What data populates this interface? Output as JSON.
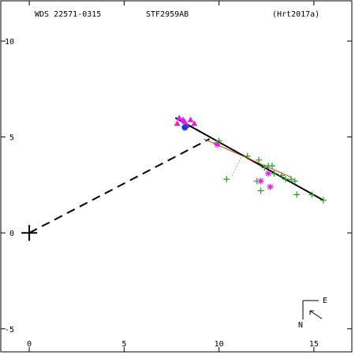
{
  "header": {
    "wds_label": "WDS 22571-0315",
    "discoverer_label": "STF2959AB",
    "reference_label": "(Hrt2017a)"
  },
  "compass": {
    "east_label": "E",
    "north_label": "N"
  },
  "colors": {
    "axis": "#000000",
    "orbit": "#000000",
    "data_green": "#22a022",
    "data_magenta": "#e020e0",
    "data_blue": "#1a3fd6",
    "fit_line": "#c04000"
  },
  "chart_data": {
    "type": "scatter",
    "title": "",
    "xlabel": "",
    "ylabel": "",
    "xlim": [
      -1.5,
      17
    ],
    "ylim": [
      -6.2,
      12.1
    ],
    "x_ticks": [
      0,
      5,
      10,
      15
    ],
    "x_tick_labels": [
      "0",
      "5",
      "10",
      "15"
    ],
    "y_ticks": [
      -5,
      0,
      5,
      10
    ],
    "y_tick_labels": [
      "-5",
      "0",
      "5",
      "10"
    ],
    "primary_position": [
      0,
      0
    ],
    "orbit_path": [
      [
        7.7,
        6.0
      ],
      [
        15.5,
        1.7
      ]
    ],
    "node_line": [
      [
        0,
        0
      ],
      [
        9.5,
        4.9
      ]
    ],
    "fit_segment": [
      [
        9.2,
        4.9
      ],
      [
        13.8,
        2.9
      ]
    ],
    "dotted_segment": [
      [
        10.7,
        3.0
      ],
      [
        11.2,
        4.0
      ]
    ],
    "series": [
      {
        "marker": "plus",
        "color": "green",
        "points": [
          [
            9.9,
            4.7
          ],
          [
            10.0,
            4.8
          ],
          [
            10.4,
            2.8
          ],
          [
            11.5,
            4.0
          ],
          [
            12.0,
            2.7
          ],
          [
            12.1,
            3.8
          ],
          [
            12.2,
            2.2
          ],
          [
            12.4,
            3.4
          ],
          [
            12.6,
            3.5
          ],
          [
            12.8,
            3.5
          ],
          [
            12.9,
            3.1
          ],
          [
            13.3,
            3.0
          ],
          [
            13.5,
            2.8
          ],
          [
            13.8,
            2.8
          ],
          [
            14.0,
            2.7
          ],
          [
            14.1,
            2.0
          ],
          [
            14.9,
            2.0
          ],
          [
            15.5,
            1.7
          ]
        ]
      },
      {
        "marker": "asterisk",
        "color": "magenta",
        "points": [
          [
            9.9,
            4.6
          ],
          [
            12.2,
            2.7
          ],
          [
            12.7,
            2.4
          ],
          [
            12.6,
            3.1
          ]
        ]
      },
      {
        "marker": "triangle",
        "color": "magenta",
        "points": [
          [
            7.9,
            6.0
          ],
          [
            8.2,
            5.8
          ],
          [
            8.3,
            5.6
          ],
          [
            8.5,
            5.9
          ],
          [
            8.7,
            5.7
          ],
          [
            7.8,
            5.7
          ],
          [
            8.1,
            5.9
          ]
        ]
      },
      {
        "marker": "filled-circle",
        "color": "blue",
        "points": [
          [
            8.2,
            5.5
          ]
        ]
      }
    ]
  }
}
